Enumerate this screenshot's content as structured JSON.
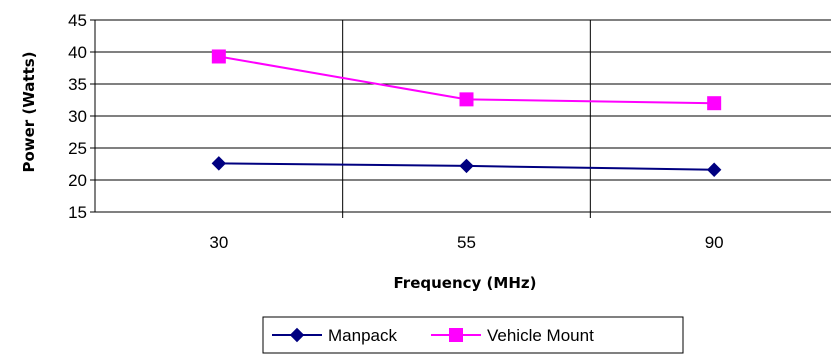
{
  "chart_data": {
    "type": "line",
    "title": "",
    "xlabel": "Frequency (MHz)",
    "ylabel": "Power (Watts)",
    "categories": [
      "30",
      "55",
      "90"
    ],
    "ylim": [
      15,
      45
    ],
    "yticks": [
      "15",
      "20",
      "25",
      "30",
      "35",
      "40",
      "45"
    ],
    "grid": true,
    "legend_position": "bottom",
    "series": [
      {
        "name": "Manpack",
        "values": [
          22.6,
          22.2,
          21.6
        ],
        "color": "#000080",
        "marker": "diamond"
      },
      {
        "name": "Vehicle Mount",
        "values": [
          39.3,
          32.6,
          32.0
        ],
        "color": "#ff00ff",
        "marker": "square"
      }
    ]
  }
}
